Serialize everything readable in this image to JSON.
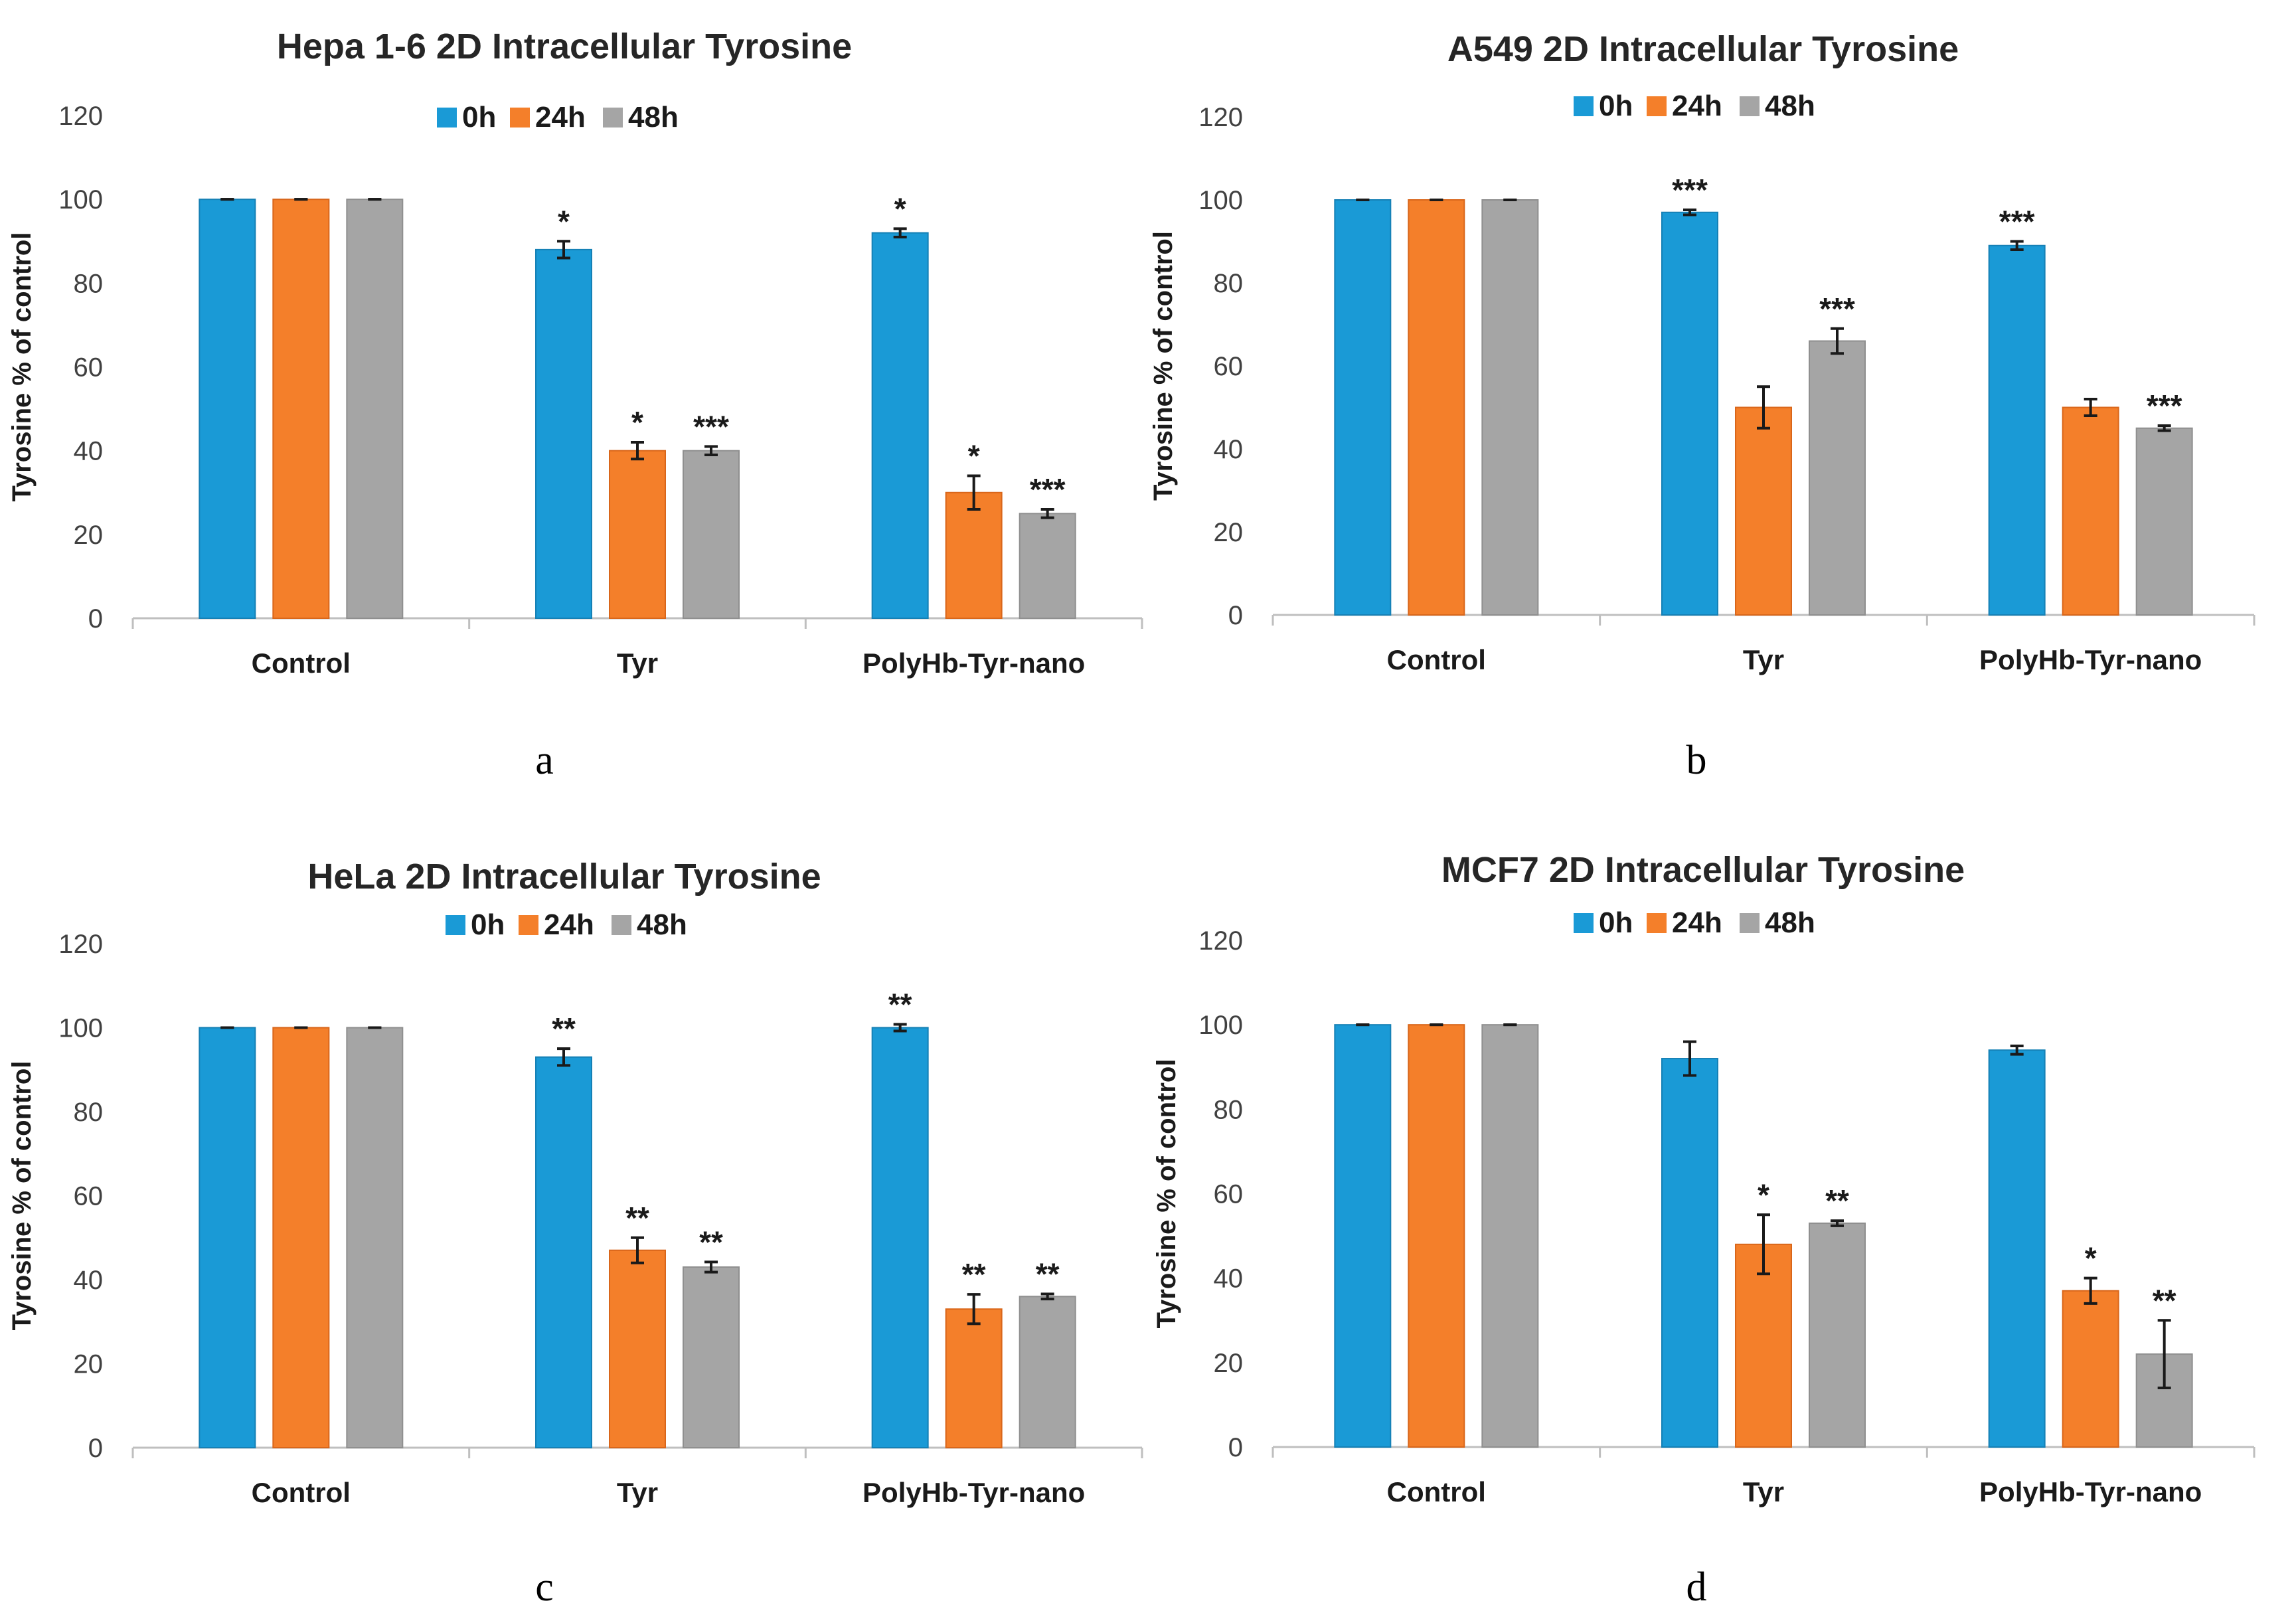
{
  "figure": {
    "panels": [
      "a",
      "b",
      "c",
      "d"
    ]
  },
  "chart_data": [
    {
      "type": "bar",
      "panel_label": "a",
      "title": "Hepa 1-6 2D Intracellular Tyrosine",
      "xlabel": "",
      "ylabel": "Tyrosine % of control",
      "ylim": [
        0,
        120
      ],
      "yticks": [
        "0",
        "20",
        "40",
        "60",
        "80",
        "100",
        "120"
      ],
      "categories": [
        "Control",
        "Tyr",
        "PolyHb-Tyr-nano"
      ],
      "legend": "top-center",
      "series": [
        {
          "name": "0h",
          "color": "#1a9ad6",
          "values": [
            100,
            88,
            92
          ],
          "errors": [
            0,
            2,
            1
          ],
          "sig": [
            "",
            "*",
            "*"
          ]
        },
        {
          "name": "24h",
          "color": "#f47f2a",
          "values": [
            100,
            40,
            30
          ],
          "errors": [
            0,
            2,
            4
          ],
          "sig": [
            "",
            "*",
            "*"
          ]
        },
        {
          "name": "48h",
          "color": "#a5a5a5",
          "values": [
            100,
            40,
            25
          ],
          "errors": [
            0,
            1,
            1
          ],
          "sig": [
            "",
            "***",
            "***"
          ]
        }
      ]
    },
    {
      "type": "bar",
      "panel_label": "b",
      "title": "A549 2D Intracellular Tyrosine",
      "xlabel": "",
      "ylabel": "Tyrosine % of control",
      "ylim": [
        0,
        120
      ],
      "yticks": [
        "0",
        "20",
        "40",
        "60",
        "80",
        "100",
        "120"
      ],
      "categories": [
        "Control",
        "Tyr",
        "PolyHb-Tyr-nano"
      ],
      "legend": "top-center",
      "series": [
        {
          "name": "0h",
          "color": "#1a9ad6",
          "values": [
            100,
            97,
            89
          ],
          "errors": [
            0,
            0.6,
            1
          ],
          "sig": [
            "",
            "***",
            "***"
          ]
        },
        {
          "name": "24h",
          "color": "#f47f2a",
          "values": [
            100,
            50,
            50
          ],
          "errors": [
            0,
            5,
            2
          ],
          "sig": [
            "",
            "",
            ""
          ]
        },
        {
          "name": "48h",
          "color": "#a5a5a5",
          "values": [
            100,
            66,
            45
          ],
          "errors": [
            0,
            3,
            0.6
          ],
          "sig": [
            "",
            "***",
            "***"
          ]
        }
      ]
    },
    {
      "type": "bar",
      "panel_label": "c",
      "title": "HeLa 2D Intracellular Tyrosine",
      "xlabel": "",
      "ylabel": "Tyrosine % of control",
      "ylim": [
        0,
        120
      ],
      "yticks": [
        "0",
        "20",
        "40",
        "60",
        "80",
        "100",
        "120"
      ],
      "categories": [
        "Control",
        "Tyr",
        "PolyHb-Tyr-nano"
      ],
      "legend": "top-center",
      "series": [
        {
          "name": "0h",
          "color": "#1a9ad6",
          "values": [
            100,
            93,
            100
          ],
          "errors": [
            0,
            2,
            0.8
          ],
          "sig": [
            "",
            "**",
            "**"
          ]
        },
        {
          "name": "24h",
          "color": "#f47f2a",
          "values": [
            100,
            47,
            33
          ],
          "errors": [
            0,
            3,
            3.5
          ],
          "sig": [
            "",
            "**",
            "**"
          ]
        },
        {
          "name": "48h",
          "color": "#a5a5a5",
          "values": [
            100,
            43,
            36
          ],
          "errors": [
            0,
            1.2,
            0.6
          ],
          "sig": [
            "",
            "**",
            "**"
          ]
        }
      ]
    },
    {
      "type": "bar",
      "panel_label": "d",
      "title": "MCF7 2D Intracellular Tyrosine",
      "xlabel": "",
      "ylabel": "Tyrosine % of control",
      "ylim": [
        0,
        120
      ],
      "yticks": [
        "0",
        "20",
        "40",
        "60",
        "80",
        "100",
        "120"
      ],
      "categories": [
        "Control",
        "Tyr",
        "PolyHb-Tyr-nano"
      ],
      "legend": "top-center",
      "series": [
        {
          "name": "0h",
          "color": "#1a9ad6",
          "values": [
            100,
            92,
            94
          ],
          "errors": [
            0,
            4,
            1
          ],
          "sig": [
            "",
            "",
            ""
          ]
        },
        {
          "name": "24h",
          "color": "#f47f2a",
          "values": [
            100,
            48,
            37
          ],
          "errors": [
            0,
            7,
            3
          ],
          "sig": [
            "",
            "*",
            "*"
          ]
        },
        {
          "name": "48h",
          "color": "#a5a5a5",
          "values": [
            100,
            53,
            22
          ],
          "errors": [
            0,
            0.6,
            8
          ],
          "sig": [
            "",
            "**",
            "**"
          ]
        }
      ]
    }
  ]
}
